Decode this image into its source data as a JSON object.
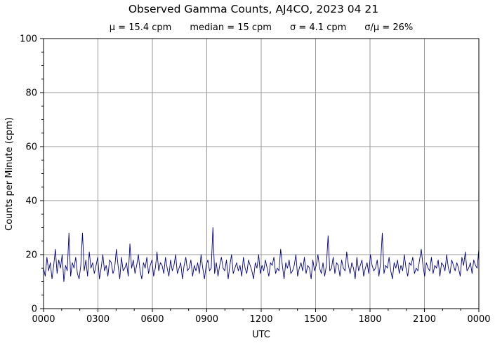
{
  "chart_data": {
    "type": "line",
    "title": "Observed Gamma Counts, AJ4CO, 2023 04 21",
    "stats": [
      "μ = 15.4 cpm",
      "median = 15 cpm",
      "σ = 4.1 cpm",
      "σ/μ = 26%"
    ],
    "xlabel": "UTC",
    "ylabel": "Counts per Minute (cpm)",
    "x_range_minutes": [
      0,
      1440
    ],
    "ylim": [
      0,
      100
    ],
    "x_tick_labels": [
      "0000",
      "0300",
      "0600",
      "0900",
      "1200",
      "1500",
      "1800",
      "2100",
      "0000"
    ],
    "y_tick_labels": [
      "0",
      "20",
      "40",
      "60",
      "80",
      "100"
    ],
    "y_tick_values": [
      0,
      20,
      40,
      60,
      80,
      100
    ],
    "grid": true,
    "series": [
      {
        "interval_minutes": 1,
        "color": "#00008b",
        "values_note_sampling": "values listed at 10-minute sampling across 0000-0000 UTC",
        "values": [
          15,
          12,
          19,
          14,
          17,
          11,
          16,
          22,
          13,
          18,
          15,
          20,
          10,
          16,
          14,
          28,
          12,
          17,
          15,
          19,
          13,
          11,
          16,
          28,
          14,
          18,
          12,
          21,
          15,
          17,
          13,
          16,
          19,
          11,
          15,
          20,
          14,
          16,
          12,
          18,
          17,
          13,
          15,
          22,
          16,
          11,
          19,
          14,
          15,
          17,
          12,
          24,
          15,
          18,
          13,
          16,
          20,
          14,
          11,
          17,
          15,
          19,
          13,
          16,
          18,
          12,
          15,
          21,
          14,
          17,
          16,
          13,
          19,
          15,
          12,
          18,
          14,
          16,
          20,
          13,
          15,
          17,
          11,
          16,
          19,
          14,
          15,
          18,
          12,
          16,
          14,
          17,
          13,
          20,
          15,
          11,
          16,
          18,
          14,
          15,
          30,
          13,
          17,
          12,
          16,
          19,
          15,
          14,
          18,
          11,
          16,
          20,
          13,
          15,
          17,
          14,
          16,
          12,
          19,
          15,
          13,
          18,
          16,
          14,
          11,
          17,
          15,
          20,
          13,
          16,
          14,
          18,
          15,
          12,
          17,
          16,
          19,
          13,
          15,
          14,
          22,
          16,
          11,
          17,
          15,
          18,
          13,
          14,
          16,
          20,
          12,
          15,
          17,
          14,
          19,
          13,
          16,
          15,
          11,
          18,
          14,
          16,
          20,
          15,
          13,
          17,
          12,
          16,
          27,
          14,
          15,
          19,
          13,
          17,
          16,
          12,
          18,
          15,
          14,
          21,
          16,
          13,
          17,
          15,
          11,
          19,
          14,
          16,
          18,
          12,
          15,
          17,
          13,
          20,
          16,
          14,
          15,
          18,
          12,
          17,
          28,
          13,
          16,
          15,
          19,
          14,
          11,
          17,
          15,
          18,
          13,
          16,
          14,
          20,
          15,
          12,
          17,
          16,
          19,
          13,
          15,
          14,
          18,
          22,
          16,
          12,
          17,
          15,
          14,
          19,
          13,
          16,
          15,
          18,
          12,
          17,
          16,
          14,
          20,
          15,
          13,
          18,
          16,
          14,
          17,
          15,
          12,
          19,
          16,
          21,
          14,
          15,
          17,
          13,
          18,
          16,
          15,
          22
        ]
      }
    ]
  }
}
